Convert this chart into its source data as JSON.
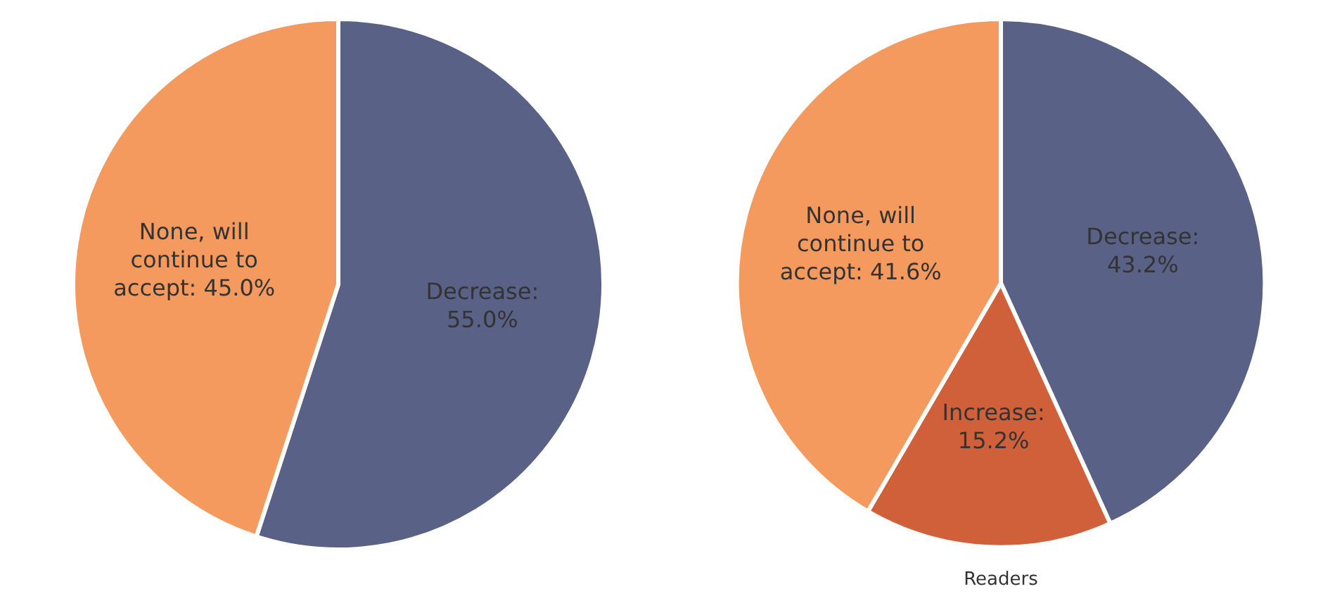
{
  "chart_data": [
    {
      "type": "pie",
      "categories": [
        "Decrease",
        "None, will continue to accept"
      ],
      "values": [
        55.0,
        45.0
      ],
      "value_labels": [
        ": 55.0%",
        ": 45.0%"
      ],
      "colors": [
        "#5a6186",
        "#f59a5e"
      ],
      "legend": false
    },
    {
      "type": "pie",
      "title": "Readers",
      "categories": [
        "Decrease",
        "Increase",
        "None, will continue to accept"
      ],
      "values": [
        43.2,
        15.2,
        41.6
      ],
      "value_labels": [
        ": 43.2%",
        ": 15.2%",
        ": 41.6%"
      ],
      "colors": [
        "#5a6186",
        "#d0603a",
        "#f59a5e"
      ],
      "legend": false
    }
  ]
}
